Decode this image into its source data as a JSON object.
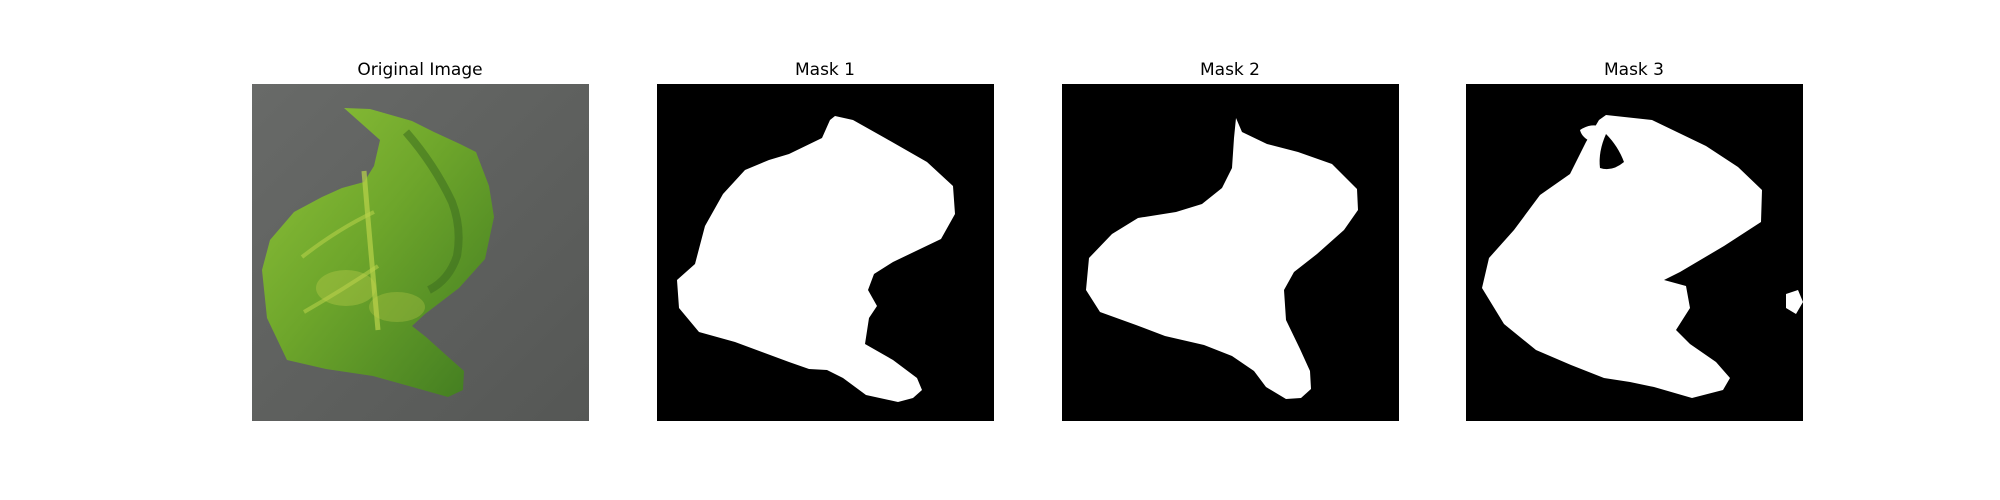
{
  "figure": {
    "panels": [
      {
        "title": "Original Image",
        "kind": "photo"
      },
      {
        "title": "Mask 1",
        "kind": "mask"
      },
      {
        "title": "Mask 2",
        "kind": "mask"
      },
      {
        "title": "Mask 3",
        "kind": "mask"
      }
    ]
  },
  "colors": {
    "background": "#ffffff",
    "mask_background": "#000000",
    "mask_foreground": "#ffffff",
    "photo_background": "#5f615f",
    "leaf_light": "#8fc23a",
    "leaf_mid": "#6ea62b",
    "leaf_dark": "#3f7a20",
    "leaf_yellow": "#c3d14d"
  }
}
